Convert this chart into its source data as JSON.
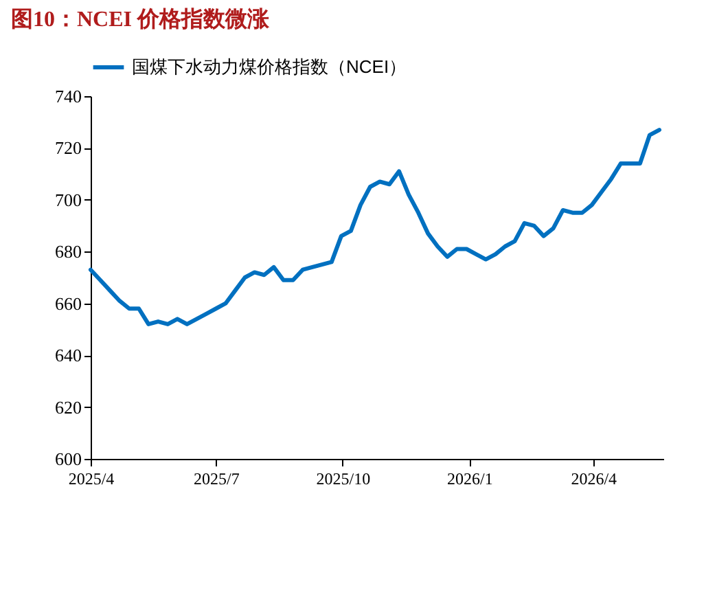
{
  "chart_data": {
    "type": "line",
    "title": "图10：NCEI 价格指数微涨",
    "x": [
      "2025-04-01",
      "2025-04-08",
      "2025-04-15",
      "2025-04-22",
      "2025-04-29",
      "2025-05-06",
      "2025-05-13",
      "2025-05-20",
      "2025-05-27",
      "2025-06-03",
      "2025-06-10",
      "2025-06-17",
      "2025-06-24",
      "2025-07-01",
      "2025-07-08",
      "2025-07-15",
      "2025-07-22",
      "2025-07-29",
      "2025-08-05",
      "2025-08-12",
      "2025-08-19",
      "2025-08-26",
      "2025-09-02",
      "2025-09-09",
      "2025-09-16",
      "2025-09-23",
      "2025-09-30",
      "2025-10-07",
      "2025-10-14",
      "2025-10-21",
      "2025-10-28",
      "2025-11-04",
      "2025-11-11",
      "2025-11-18",
      "2025-11-25",
      "2025-12-02",
      "2025-12-09",
      "2025-12-16",
      "2025-12-23",
      "2025-12-30",
      "2026-01-06",
      "2026-01-13",
      "2026-01-20",
      "2026-01-27",
      "2026-02-03",
      "2026-02-10",
      "2026-02-17",
      "2026-02-24",
      "2026-03-03",
      "2026-03-10",
      "2026-03-17",
      "2026-03-24",
      "2026-03-31",
      "2026-04-07",
      "2026-04-14",
      "2026-04-21",
      "2026-04-28",
      "2026-05-05",
      "2026-05-12",
      "2026-05-19"
    ],
    "series": [
      {
        "name": "国煤下水动力煤价格指数（NCEI）",
        "color": "#0070c0",
        "values": [
          673,
          669,
          665,
          661,
          658,
          658,
          652,
          653,
          652,
          654,
          652,
          654,
          656,
          658,
          660,
          665,
          670,
          672,
          671,
          674,
          669,
          669,
          673,
          674,
          675,
          676,
          686,
          688,
          698,
          705,
          707,
          706,
          711,
          702,
          695,
          687,
          682,
          678,
          681,
          681,
          679,
          677,
          679,
          682,
          684,
          691,
          690,
          686,
          689,
          696,
          695,
          695,
          698,
          703,
          708,
          714,
          714,
          714,
          725,
          727
        ]
      }
    ],
    "xlim": [
      "2025-04-01",
      "2026-05-22"
    ],
    "xticks": [
      {
        "value": "2025-04-01",
        "label": "2025/4"
      },
      {
        "value": "2025-07-01",
        "label": "2025/7"
      },
      {
        "value": "2025-10-01",
        "label": "2025/10"
      },
      {
        "value": "2026-01-01",
        "label": "2026/1"
      },
      {
        "value": "2026-04-01",
        "label": "2026/4"
      }
    ],
    "ylim": [
      600,
      740
    ],
    "yticks": [
      600,
      620,
      640,
      660,
      680,
      700,
      720,
      740
    ],
    "legend": "top",
    "grid": false,
    "line_style": "solid",
    "marker": "none"
  }
}
